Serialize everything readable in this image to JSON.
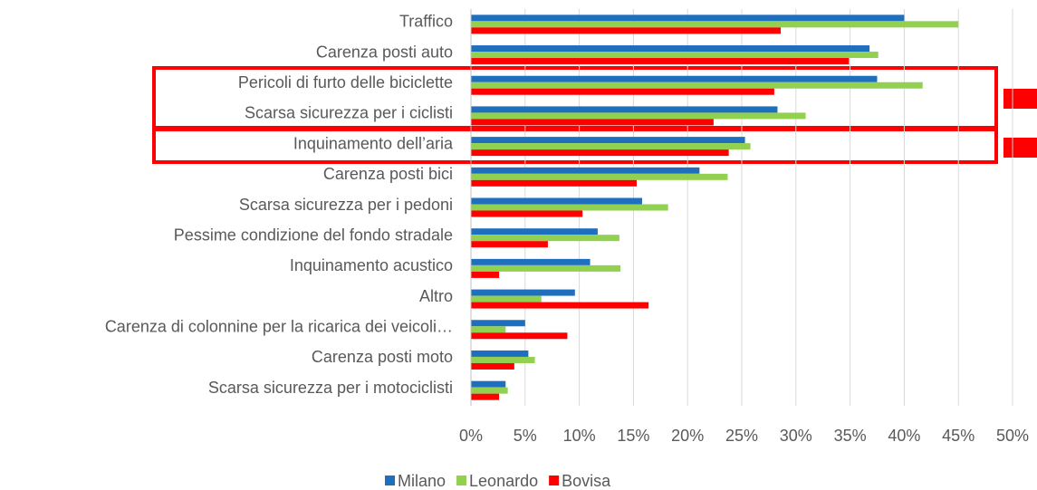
{
  "chart_data": {
    "type": "hbar",
    "categories": [
      "Traffico",
      "Carenza posti auto",
      "Pericoli di furto delle biciclette",
      "Scarsa sicurezza per i ciclisti",
      "Inquinamento dell’aria",
      "Carenza posti bici",
      "Scarsa sicurezza per i pedoni",
      "Pessime condizione del fondo stradale",
      "Inquinamento acustico",
      "Altro",
      "Carenza di colonnine per la ricarica dei veicoli…",
      "Carenza posti moto",
      "Scarsa sicurezza per i motociclisti"
    ],
    "series": [
      {
        "name": "Milano",
        "color": "#1f6fbf",
        "values": [
          40.0,
          36.8,
          37.5,
          28.3,
          25.3,
          21.1,
          15.8,
          11.7,
          11.0,
          9.6,
          5.0,
          5.3,
          3.2
        ]
      },
      {
        "name": "Leonardo",
        "color": "#92d050",
        "values": [
          45.0,
          37.6,
          41.7,
          30.9,
          25.8,
          23.7,
          18.2,
          13.7,
          13.8,
          6.5,
          3.2,
          5.9,
          3.4
        ]
      },
      {
        "name": "Bovisa",
        "color": "#ff0000",
        "values": [
          28.6,
          34.9,
          28.0,
          22.4,
          23.8,
          15.3,
          10.3,
          7.1,
          2.6,
          16.4,
          8.9,
          4.0,
          2.6
        ]
      }
    ],
    "xlim": [
      0,
      50
    ],
    "xticks": [
      {
        "value": 0,
        "label": "0%"
      },
      {
        "value": 5,
        "label": "5%"
      },
      {
        "value": 10,
        "label": "10%"
      },
      {
        "value": 15,
        "label": "15%"
      },
      {
        "value": 20,
        "label": "20%"
      },
      {
        "value": 25,
        "label": "25%"
      },
      {
        "value": 30,
        "label": "30%"
      },
      {
        "value": 35,
        "label": "35%"
      },
      {
        "value": 40,
        "label": "40%"
      },
      {
        "value": 45,
        "label": "45%"
      },
      {
        "value": 50,
        "label": "50%"
      }
    ],
    "grid": true,
    "legend": "bottom"
  }
}
